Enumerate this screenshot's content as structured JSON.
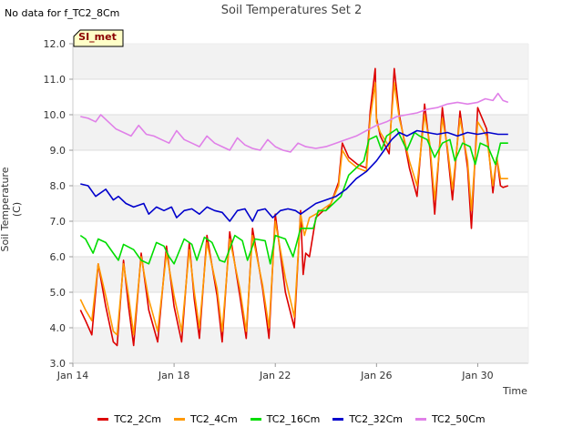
{
  "no_data_text": "No data for f_TC2_8Cm",
  "site_label": "SI_met",
  "chart_data": {
    "type": "line",
    "title": "Soil Temperatures Set 2",
    "xlabel": "Time",
    "ylabel": "Soil Temperature (C)",
    "xlim": [
      0,
      18
    ],
    "ylim": [
      3.0,
      12.0
    ],
    "yticks": [
      "3.0",
      "4.0",
      "5.0",
      "6.0",
      "7.0",
      "8.0",
      "9.0",
      "10.0",
      "11.0",
      "12.0"
    ],
    "xticks": [
      {
        "v": 0,
        "label": "Jan 14"
      },
      {
        "v": 4,
        "label": "Jan 18"
      },
      {
        "v": 8,
        "label": "Jan 22"
      },
      {
        "v": 12,
        "label": "Jan 26"
      },
      {
        "v": 16,
        "label": "Jan 30"
      }
    ],
    "grid": true,
    "legend_position": "bottom",
    "series": [
      {
        "name": "TC2_2Cm",
        "color": "#dd0000",
        "x": [
          0.3,
          0.5,
          0.75,
          1.0,
          1.3,
          1.6,
          1.75,
          2.0,
          2.2,
          2.4,
          2.7,
          3.0,
          3.35,
          3.7,
          4.0,
          4.3,
          4.6,
          4.8,
          5.0,
          5.3,
          5.7,
          5.9,
          6.2,
          6.6,
          6.85,
          7.1,
          7.5,
          7.75,
          8.0,
          8.4,
          8.75,
          9.0,
          9.1,
          9.2,
          9.35,
          9.6,
          9.9,
          10.0,
          10.2,
          10.5,
          10.65,
          10.9,
          11.25,
          11.6,
          11.75,
          11.95,
          12.0,
          12.15,
          12.5,
          12.7,
          12.9,
          13.3,
          13.6,
          13.9,
          14.1,
          14.3,
          14.6,
          14.8,
          15.0,
          15.3,
          15.6,
          15.75,
          16.0,
          16.35,
          16.6,
          16.75,
          16.9,
          17.0,
          17.2
        ],
        "y": [
          4.5,
          4.2,
          3.8,
          5.8,
          4.6,
          3.6,
          3.5,
          5.9,
          4.6,
          3.5,
          6.1,
          4.5,
          3.6,
          6.3,
          4.6,
          3.6,
          6.4,
          4.8,
          3.7,
          6.6,
          4.9,
          3.6,
          6.7,
          4.9,
          3.7,
          6.8,
          5.1,
          3.7,
          7.2,
          5.0,
          4.0,
          7.3,
          5.5,
          6.1,
          6.0,
          7.1,
          7.3,
          7.3,
          7.5,
          8.1,
          9.2,
          8.8,
          8.6,
          8.5,
          10.1,
          11.3,
          9.9,
          9.4,
          8.9,
          11.3,
          10.0,
          8.5,
          7.7,
          10.3,
          9.1,
          7.2,
          10.2,
          9.0,
          7.6,
          10.1,
          8.5,
          6.8,
          10.2,
          9.6,
          7.8,
          8.8,
          8.0,
          7.95,
          8.0
        ],
        "clip_x": 17.2
      },
      {
        "name": "TC2_4Cm",
        "color": "#ff9900",
        "x": [
          0.3,
          0.5,
          0.75,
          1.0,
          1.3,
          1.6,
          1.75,
          2.0,
          2.2,
          2.4,
          2.7,
          3.0,
          3.35,
          3.7,
          4.0,
          4.3,
          4.6,
          4.8,
          5.0,
          5.3,
          5.7,
          5.9,
          6.2,
          6.6,
          6.85,
          7.1,
          7.5,
          7.75,
          8.0,
          8.4,
          8.75,
          9.0,
          9.15,
          9.35,
          9.6,
          9.9,
          10.2,
          10.5,
          10.65,
          10.9,
          11.25,
          11.6,
          11.75,
          11.95,
          12.0,
          12.15,
          12.5,
          12.7,
          12.9,
          13.3,
          13.6,
          13.9,
          14.1,
          14.3,
          14.6,
          14.8,
          15.0,
          15.3,
          15.6,
          15.75,
          16.0,
          16.35,
          16.6,
          16.75,
          16.9,
          17.0,
          17.2
        ],
        "y": [
          4.8,
          4.5,
          4.2,
          5.8,
          4.9,
          3.9,
          3.8,
          5.8,
          4.9,
          3.8,
          6.0,
          4.8,
          3.9,
          6.1,
          4.9,
          3.9,
          6.2,
          5.0,
          4.0,
          6.4,
          5.1,
          3.9,
          6.5,
          5.1,
          3.9,
          6.6,
          5.2,
          4.0,
          7.0,
          5.4,
          4.3,
          7.2,
          6.6,
          7.1,
          7.2,
          7.35,
          7.5,
          8.0,
          9.0,
          8.7,
          8.5,
          8.4,
          9.9,
          10.9,
          9.8,
          9.5,
          9.1,
          10.9,
          9.9,
          8.7,
          8.0,
          10.0,
          9.2,
          7.6,
          9.9,
          9.1,
          7.9,
          9.9,
          8.7,
          7.3,
          9.8,
          9.4,
          8.0,
          8.8,
          8.2,
          8.2,
          8.2
        ],
        "clip_x": 17.2
      },
      {
        "name": "TC2_16Cm",
        "color": "#00dd00",
        "x": [
          0.3,
          0.5,
          0.8,
          1.0,
          1.3,
          1.6,
          1.8,
          2.0,
          2.4,
          2.7,
          3.0,
          3.3,
          3.6,
          3.8,
          4.0,
          4.4,
          4.7,
          4.9,
          5.2,
          5.5,
          5.8,
          6.0,
          6.4,
          6.7,
          6.9,
          7.2,
          7.6,
          7.8,
          8.0,
          8.4,
          8.7,
          9.0,
          9.2,
          9.5,
          9.7,
          10.0,
          10.3,
          10.6,
          10.9,
          11.2,
          11.5,
          11.7,
          12.0,
          12.2,
          12.4,
          12.8,
          13.0,
          13.2,
          13.5,
          13.7,
          14.0,
          14.3,
          14.6,
          14.9,
          15.1,
          15.4,
          15.7,
          15.9,
          16.1,
          16.4,
          16.7,
          16.9,
          17.0,
          17.2
        ],
        "y": [
          6.6,
          6.5,
          6.1,
          6.5,
          6.4,
          6.1,
          5.9,
          6.35,
          6.2,
          5.9,
          5.8,
          6.4,
          6.3,
          6.0,
          5.8,
          6.5,
          6.35,
          5.9,
          6.55,
          6.4,
          5.9,
          5.85,
          6.6,
          6.45,
          5.9,
          6.5,
          6.45,
          5.8,
          6.6,
          6.5,
          6.0,
          6.8,
          6.8,
          6.8,
          7.3,
          7.3,
          7.5,
          7.7,
          8.3,
          8.5,
          8.7,
          9.3,
          9.4,
          9.0,
          9.4,
          9.6,
          9.3,
          9.0,
          9.5,
          9.4,
          9.3,
          8.8,
          9.2,
          9.3,
          8.7,
          9.2,
          9.1,
          8.6,
          9.2,
          9.1,
          8.6,
          9.2,
          9.2,
          9.2
        ],
        "clip_x": 17.2
      },
      {
        "name": "TC2_32Cm",
        "color": "#0000cc",
        "x": [
          0.3,
          0.6,
          0.9,
          1.3,
          1.6,
          1.8,
          2.1,
          2.4,
          2.8,
          3.0,
          3.3,
          3.6,
          3.9,
          4.1,
          4.4,
          4.7,
          5.0,
          5.3,
          5.6,
          5.9,
          6.2,
          6.5,
          6.8,
          7.1,
          7.3,
          7.6,
          7.9,
          8.2,
          8.5,
          8.8,
          9.0,
          9.3,
          9.6,
          10.0,
          10.4,
          10.8,
          11.2,
          11.6,
          12.0,
          12.3,
          12.6,
          12.9,
          13.2,
          13.6,
          14.0,
          14.4,
          14.8,
          15.2,
          15.6,
          16.0,
          16.4,
          16.8,
          17.2
        ],
        "y": [
          8.05,
          8.0,
          7.7,
          7.9,
          7.6,
          7.7,
          7.5,
          7.4,
          7.5,
          7.2,
          7.4,
          7.3,
          7.4,
          7.1,
          7.3,
          7.35,
          7.2,
          7.4,
          7.3,
          7.25,
          7.0,
          7.3,
          7.35,
          7.0,
          7.3,
          7.35,
          7.1,
          7.3,
          7.35,
          7.3,
          7.2,
          7.35,
          7.5,
          7.6,
          7.7,
          7.9,
          8.2,
          8.4,
          8.7,
          9.0,
          9.3,
          9.5,
          9.4,
          9.55,
          9.5,
          9.45,
          9.5,
          9.4,
          9.5,
          9.45,
          9.5,
          9.45,
          9.45
        ],
        "clip_x": 17.2
      },
      {
        "name": "TC2_50Cm",
        "color": "#e080e8",
        "x": [
          0.3,
          0.6,
          0.9,
          1.1,
          1.4,
          1.7,
          2.0,
          2.3,
          2.6,
          2.9,
          3.2,
          3.5,
          3.8,
          4.1,
          4.4,
          4.7,
          5.0,
          5.3,
          5.6,
          5.9,
          6.2,
          6.5,
          6.8,
          7.1,
          7.4,
          7.7,
          8.0,
          8.3,
          8.6,
          8.9,
          9.2,
          9.6,
          10.0,
          10.4,
          10.8,
          11.2,
          11.6,
          12.0,
          12.4,
          12.8,
          13.2,
          13.6,
          14.0,
          14.4,
          14.8,
          15.2,
          15.6,
          16.0,
          16.3,
          16.6,
          16.8,
          17.0,
          17.2
        ],
        "y": [
          9.95,
          9.9,
          9.8,
          10.0,
          9.8,
          9.6,
          9.5,
          9.4,
          9.7,
          9.45,
          9.4,
          9.3,
          9.2,
          9.55,
          9.3,
          9.2,
          9.1,
          9.4,
          9.2,
          9.1,
          9.0,
          9.35,
          9.15,
          9.05,
          9.0,
          9.3,
          9.1,
          9.0,
          8.95,
          9.2,
          9.1,
          9.05,
          9.1,
          9.2,
          9.3,
          9.4,
          9.55,
          9.7,
          9.8,
          9.95,
          10.0,
          10.05,
          10.15,
          10.2,
          10.3,
          10.35,
          10.3,
          10.35,
          10.45,
          10.4,
          10.6,
          10.4,
          10.35
        ],
        "clip_x": 17.2
      }
    ]
  }
}
